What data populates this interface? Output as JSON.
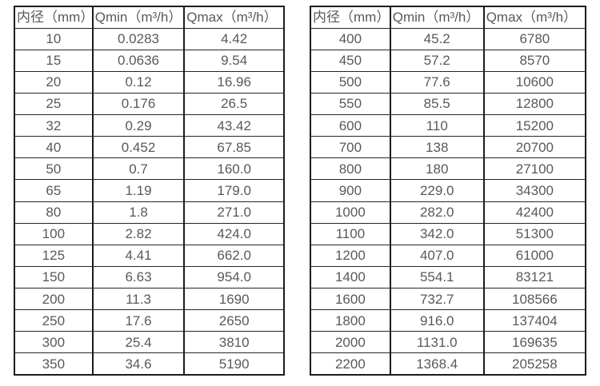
{
  "page": {
    "background_color": "#ffffff",
    "text_color": "#595959",
    "border_color": "#1c1c1c"
  },
  "tables": [
    {
      "name": "flow-range-table-small-diameters",
      "headers": [
        "内径（mm）",
        "Qmin（m³/h）",
        "Qmax（m³/h）"
      ],
      "rows": [
        [
          "10",
          "0.0283",
          "4.42"
        ],
        [
          "15",
          "0.0636",
          "9.54"
        ],
        [
          "20",
          "0.12",
          "16.96"
        ],
        [
          "25",
          "0.176",
          "26.5"
        ],
        [
          "32",
          "0.29",
          "43.42"
        ],
        [
          "40",
          "0.452",
          "67.85"
        ],
        [
          "50",
          "0.7",
          "160.0"
        ],
        [
          "65",
          "1.19",
          "179.0"
        ],
        [
          "80",
          "1.8",
          "271.0"
        ],
        [
          "100",
          "2.82",
          "424.0"
        ],
        [
          "125",
          "4.41",
          "662.0"
        ],
        [
          "150",
          "6.63",
          "954.0"
        ],
        [
          "200",
          "11.3",
          "1690"
        ],
        [
          "250",
          "17.6",
          "2650"
        ],
        [
          "300",
          "25.4",
          "3810"
        ],
        [
          "350",
          "34.6",
          "5190"
        ]
      ]
    },
    {
      "name": "flow-range-table-large-diameters",
      "headers": [
        "内径（mm）",
        "Qmin（m³/h）",
        "Qmax（m³/h）"
      ],
      "rows": [
        [
          "400",
          "45.2",
          "6780"
        ],
        [
          "450",
          "57.2",
          "8570"
        ],
        [
          "500",
          "77.6",
          "10600"
        ],
        [
          "550",
          "85.5",
          "12800"
        ],
        [
          "600",
          "110",
          "15200"
        ],
        [
          "700",
          "138",
          "20700"
        ],
        [
          "800",
          "180",
          "27100"
        ],
        [
          "900",
          "229.0",
          "34300"
        ],
        [
          "1000",
          "282.0",
          "42400"
        ],
        [
          "1100",
          "342.0",
          "51300"
        ],
        [
          "1200",
          "407.0",
          "61000"
        ],
        [
          "1400",
          "554.1",
          "83121"
        ],
        [
          "1600",
          "732.7",
          "108566"
        ],
        [
          "1800",
          "916.0",
          "137404"
        ],
        [
          "2000",
          "1131.0",
          "169635"
        ],
        [
          "2200",
          "1368.4",
          "205258"
        ]
      ]
    }
  ]
}
